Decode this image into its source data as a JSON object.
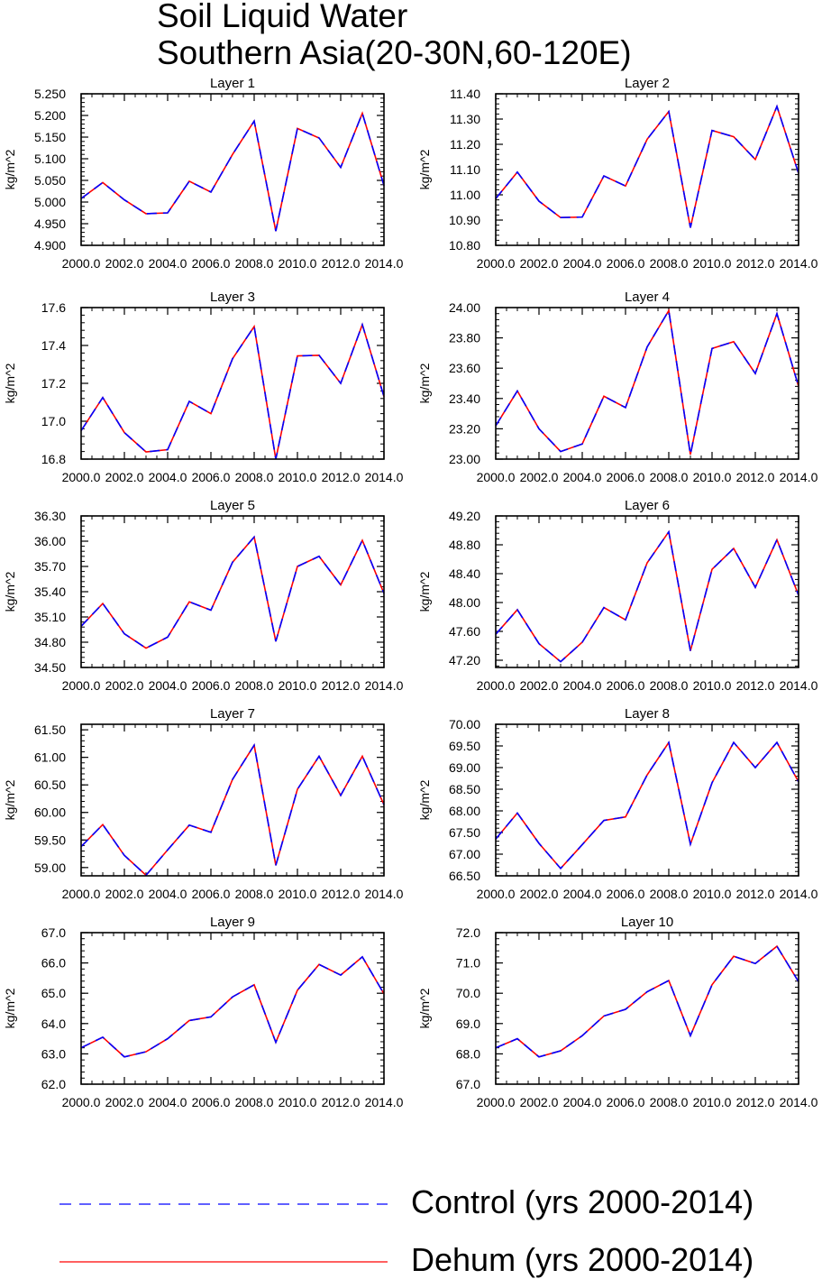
{
  "title": [
    "Soil Liquid Water",
    "Southern Asia(20-30N,60-120E)"
  ],
  "legend": [
    {
      "label": "Control (yrs 2000-2014)",
      "color": "#0000ff",
      "style": "dashed"
    },
    {
      "label": "Dehum (yrs 2000-2014)",
      "color": "#ff0000",
      "style": "solid"
    }
  ],
  "chart_data": [
    {
      "type": "line",
      "title": "Layer 1",
      "ylabel": "kg/m^2",
      "x": [
        2000,
        2001,
        2002,
        2003,
        2004,
        2005,
        2006,
        2007,
        2008,
        2009,
        2010,
        2011,
        2012,
        2013,
        2014
      ],
      "xticks": [
        "2000.0",
        "2002.0",
        "2004.0",
        "2006.0",
        "2008.0",
        "2010.0",
        "2012.0",
        "2014.0"
      ],
      "xlim": [
        2000,
        2014
      ],
      "ylim": [
        4.9,
        5.25
      ],
      "yticks": [
        "4.900",
        "4.950",
        "5.000",
        "5.050",
        "5.100",
        "5.150",
        "5.200",
        "5.250"
      ],
      "series": [
        {
          "name": "Control (yrs 2000-2014)",
          "values": [
            5.008,
            5.045,
            5.005,
            4.973,
            4.975,
            5.048,
            5.023,
            5.11,
            5.187,
            4.933,
            5.17,
            5.148,
            5.08,
            5.205,
            5.038
          ]
        },
        {
          "name": "Dehum (yrs 2000-2014)",
          "values": [
            5.008,
            5.045,
            5.005,
            4.973,
            4.975,
            5.048,
            5.023,
            5.11,
            5.187,
            4.933,
            5.17,
            5.148,
            5.08,
            5.205,
            5.038
          ]
        }
      ]
    },
    {
      "type": "line",
      "title": "Layer 2",
      "ylabel": "kg/m^2",
      "x": [
        2000,
        2001,
        2002,
        2003,
        2004,
        2005,
        2006,
        2007,
        2008,
        2009,
        2010,
        2011,
        2012,
        2013,
        2014
      ],
      "xticks": [
        "2000.0",
        "2002.0",
        "2004.0",
        "2006.0",
        "2008.0",
        "2010.0",
        "2012.0",
        "2014.0"
      ],
      "xlim": [
        2000,
        2014
      ],
      "ylim": [
        10.8,
        11.4
      ],
      "yticks": [
        "10.80",
        "10.90",
        "11.00",
        "11.10",
        "11.20",
        "11.30",
        "11.40"
      ],
      "series": [
        {
          "name": "Control (yrs 2000-2014)",
          "values": [
            10.985,
            11.09,
            10.975,
            10.91,
            10.912,
            11.075,
            11.035,
            11.22,
            11.33,
            10.87,
            11.255,
            11.23,
            11.14,
            11.35,
            11.085
          ]
        },
        {
          "name": "Dehum (yrs 2000-2014)",
          "values": [
            10.985,
            11.09,
            10.975,
            10.91,
            10.912,
            11.075,
            11.035,
            11.22,
            11.33,
            10.87,
            11.255,
            11.23,
            11.14,
            11.35,
            11.085
          ]
        }
      ]
    },
    {
      "type": "line",
      "title": "Layer 3",
      "ylabel": "kg/m^2",
      "x": [
        2000,
        2001,
        2002,
        2003,
        2004,
        2005,
        2006,
        2007,
        2008,
        2009,
        2010,
        2011,
        2012,
        2013,
        2014
      ],
      "xticks": [
        "2000.0",
        "2002.0",
        "2004.0",
        "2006.0",
        "2008.0",
        "2010.0",
        "2012.0",
        "2014.0"
      ],
      "xlim": [
        2000,
        2014
      ],
      "ylim": [
        16.8,
        17.6
      ],
      "yticks": [
        "16.8",
        "17.0",
        "17.2",
        "17.4",
        "17.6"
      ],
      "series": [
        {
          "name": "Control (yrs 2000-2014)",
          "values": [
            16.95,
            17.125,
            16.94,
            16.838,
            16.85,
            17.105,
            17.04,
            17.33,
            17.5,
            16.8,
            17.345,
            17.348,
            17.2,
            17.51,
            17.13
          ]
        },
        {
          "name": "Dehum (yrs 2000-2014)",
          "values": [
            16.95,
            17.125,
            16.94,
            16.838,
            16.85,
            17.105,
            17.04,
            17.33,
            17.5,
            16.8,
            17.345,
            17.348,
            17.2,
            17.51,
            17.13
          ]
        }
      ]
    },
    {
      "type": "line",
      "title": "Layer 4",
      "ylabel": "kg/m^2",
      "x": [
        2000,
        2001,
        2002,
        2003,
        2004,
        2005,
        2006,
        2007,
        2008,
        2009,
        2010,
        2011,
        2012,
        2013,
        2014
      ],
      "xticks": [
        "2000.0",
        "2002.0",
        "2004.0",
        "2006.0",
        "2008.0",
        "2010.0",
        "2012.0",
        "2014.0"
      ],
      "xlim": [
        2000,
        2014
      ],
      "ylim": [
        23.0,
        24.0
      ],
      "yticks": [
        "23.00",
        "23.20",
        "23.40",
        "23.60",
        "23.80",
        "24.00"
      ],
      "series": [
        {
          "name": "Control (yrs 2000-2014)",
          "values": [
            23.22,
            23.45,
            23.2,
            23.05,
            23.1,
            23.415,
            23.34,
            23.74,
            23.98,
            23.03,
            23.73,
            23.775,
            23.565,
            23.96,
            23.48
          ]
        },
        {
          "name": "Dehum (yrs 2000-2014)",
          "values": [
            23.22,
            23.45,
            23.2,
            23.05,
            23.1,
            23.415,
            23.34,
            23.74,
            23.98,
            23.03,
            23.73,
            23.775,
            23.565,
            23.96,
            23.48
          ]
        }
      ]
    },
    {
      "type": "line",
      "title": "Layer 5",
      "ylabel": "kg/m^2",
      "x": [
        2000,
        2001,
        2002,
        2003,
        2004,
        2005,
        2006,
        2007,
        2008,
        2009,
        2010,
        2011,
        2012,
        2013,
        2014
      ],
      "xticks": [
        "2000.0",
        "2002.0",
        "2004.0",
        "2006.0",
        "2008.0",
        "2010.0",
        "2012.0",
        "2014.0"
      ],
      "xlim": [
        2000,
        2014
      ],
      "ylim": [
        34.5,
        36.3
      ],
      "yticks": [
        "34.50",
        "34.80",
        "35.10",
        "35.40",
        "35.70",
        "36.00",
        "36.30"
      ],
      "series": [
        {
          "name": "Control (yrs 2000-2014)",
          "values": [
            34.99,
            35.26,
            34.9,
            34.73,
            34.86,
            35.28,
            35.18,
            35.75,
            36.05,
            34.81,
            35.7,
            35.82,
            35.48,
            36.01,
            35.38
          ]
        },
        {
          "name": "Dehum (yrs 2000-2014)",
          "values": [
            34.99,
            35.26,
            34.9,
            34.73,
            34.86,
            35.28,
            35.18,
            35.75,
            36.05,
            34.81,
            35.7,
            35.82,
            35.48,
            36.01,
            35.38
          ]
        }
      ]
    },
    {
      "type": "line",
      "title": "Layer 6",
      "ylabel": "kg/m^2",
      "x": [
        2000,
        2001,
        2002,
        2003,
        2004,
        2005,
        2006,
        2007,
        2008,
        2009,
        2010,
        2011,
        2012,
        2013,
        2014
      ],
      "xticks": [
        "2000.0",
        "2002.0",
        "2004.0",
        "2006.0",
        "2008.0",
        "2010.0",
        "2012.0",
        "2014.0"
      ],
      "xlim": [
        2000,
        2014
      ],
      "ylim": [
        47.1,
        49.2
      ],
      "yticks": [
        "47.20",
        "47.60",
        "48.00",
        "48.40",
        "48.80",
        "49.20"
      ],
      "series": [
        {
          "name": "Control (yrs 2000-2014)",
          "values": [
            47.56,
            47.9,
            47.43,
            47.18,
            47.45,
            47.93,
            47.76,
            48.55,
            48.98,
            47.33,
            48.46,
            48.75,
            48.21,
            48.87,
            48.1
          ]
        },
        {
          "name": "Dehum (yrs 2000-2014)",
          "values": [
            47.56,
            47.9,
            47.43,
            47.18,
            47.45,
            47.93,
            47.76,
            48.55,
            48.98,
            47.33,
            48.46,
            48.75,
            48.21,
            48.87,
            48.1
          ]
        }
      ]
    },
    {
      "type": "line",
      "title": "Layer 7",
      "ylabel": "kg/m^2",
      "x": [
        2000,
        2001,
        2002,
        2003,
        2004,
        2005,
        2006,
        2007,
        2008,
        2009,
        2010,
        2011,
        2012,
        2013,
        2014
      ],
      "xticks": [
        "2000.0",
        "2002.0",
        "2004.0",
        "2006.0",
        "2008.0",
        "2010.0",
        "2012.0",
        "2014.0"
      ],
      "xlim": [
        2000,
        2014
      ],
      "ylim": [
        58.85,
        61.6
      ],
      "yticks": [
        "59.00",
        "59.50",
        "60.00",
        "60.50",
        "61.00",
        "61.50"
      ],
      "series": [
        {
          "name": "Control (yrs 2000-2014)",
          "values": [
            59.38,
            59.78,
            59.22,
            58.86,
            59.32,
            59.77,
            59.64,
            60.6,
            61.22,
            59.04,
            60.42,
            61.02,
            60.31,
            61.02,
            60.14
          ]
        },
        {
          "name": "Dehum (yrs 2000-2014)",
          "values": [
            59.38,
            59.78,
            59.22,
            58.86,
            59.32,
            59.77,
            59.64,
            60.6,
            61.22,
            59.04,
            60.42,
            61.02,
            60.31,
            61.02,
            60.14
          ]
        }
      ]
    },
    {
      "type": "line",
      "title": "Layer 8",
      "ylabel": "kg/m^2",
      "x": [
        2000,
        2001,
        2002,
        2003,
        2004,
        2005,
        2006,
        2007,
        2008,
        2009,
        2010,
        2011,
        2012,
        2013,
        2014
      ],
      "xticks": [
        "2000.0",
        "2002.0",
        "2004.0",
        "2006.0",
        "2008.0",
        "2010.0",
        "2012.0",
        "2014.0"
      ],
      "xlim": [
        2000,
        2014
      ],
      "ylim": [
        66.5,
        70.0
      ],
      "yticks": [
        "66.50",
        "67.00",
        "67.50",
        "68.00",
        "68.50",
        "69.00",
        "69.50",
        "70.00"
      ],
      "series": [
        {
          "name": "Control (yrs 2000-2014)",
          "values": [
            67.35,
            67.95,
            67.25,
            66.67,
            67.22,
            67.78,
            67.86,
            68.83,
            69.58,
            67.23,
            68.65,
            69.58,
            69.0,
            69.58,
            68.67
          ]
        },
        {
          "name": "Dehum (yrs 2000-2014)",
          "values": [
            67.35,
            67.95,
            67.25,
            66.67,
            67.22,
            67.78,
            67.86,
            68.83,
            69.58,
            67.23,
            68.65,
            69.58,
            69.0,
            69.58,
            68.67
          ]
        }
      ]
    },
    {
      "type": "line",
      "title": "Layer 9",
      "ylabel": "kg/m^2",
      "x": [
        2000,
        2001,
        2002,
        2003,
        2004,
        2005,
        2006,
        2007,
        2008,
        2009,
        2010,
        2011,
        2012,
        2013,
        2014
      ],
      "xticks": [
        "2000.0",
        "2002.0",
        "2004.0",
        "2006.0",
        "2008.0",
        "2010.0",
        "2012.0",
        "2014.0"
      ],
      "xlim": [
        2000,
        2014
      ],
      "ylim": [
        62.0,
        67.0
      ],
      "yticks": [
        "62.0",
        "63.0",
        "64.0",
        "65.0",
        "66.0",
        "67.0"
      ],
      "series": [
        {
          "name": "Control (yrs 2000-2014)",
          "values": [
            63.2,
            63.55,
            62.9,
            63.07,
            63.5,
            64.1,
            64.22,
            64.88,
            65.28,
            63.38,
            65.1,
            65.95,
            65.6,
            66.2,
            64.98
          ]
        },
        {
          "name": "Dehum (yrs 2000-2014)",
          "values": [
            63.2,
            63.55,
            62.9,
            63.07,
            63.5,
            64.1,
            64.22,
            64.88,
            65.28,
            63.38,
            65.1,
            65.95,
            65.6,
            66.2,
            64.98
          ]
        }
      ]
    },
    {
      "type": "line",
      "title": "Layer 10",
      "ylabel": "kg/m^2",
      "x": [
        2000,
        2001,
        2002,
        2003,
        2004,
        2005,
        2006,
        2007,
        2008,
        2009,
        2010,
        2011,
        2012,
        2013,
        2014
      ],
      "xticks": [
        "2000.0",
        "2002.0",
        "2004.0",
        "2006.0",
        "2008.0",
        "2010.0",
        "2012.0",
        "2014.0"
      ],
      "xlim": [
        2000,
        2014
      ],
      "ylim": [
        67.0,
        72.0
      ],
      "yticks": [
        "67.0",
        "68.0",
        "69.0",
        "70.0",
        "71.0",
        "72.0"
      ],
      "series": [
        {
          "name": "Control (yrs 2000-2014)",
          "values": [
            68.2,
            68.5,
            67.9,
            68.1,
            68.6,
            69.25,
            69.47,
            70.05,
            70.42,
            68.6,
            70.28,
            71.22,
            70.98,
            71.55,
            70.38
          ]
        },
        {
          "name": "Dehum (yrs 2000-2014)",
          "values": [
            68.2,
            68.5,
            67.9,
            68.1,
            68.6,
            69.25,
            69.47,
            70.05,
            70.42,
            68.6,
            70.28,
            71.22,
            70.98,
            71.55,
            70.38
          ]
        }
      ]
    }
  ]
}
